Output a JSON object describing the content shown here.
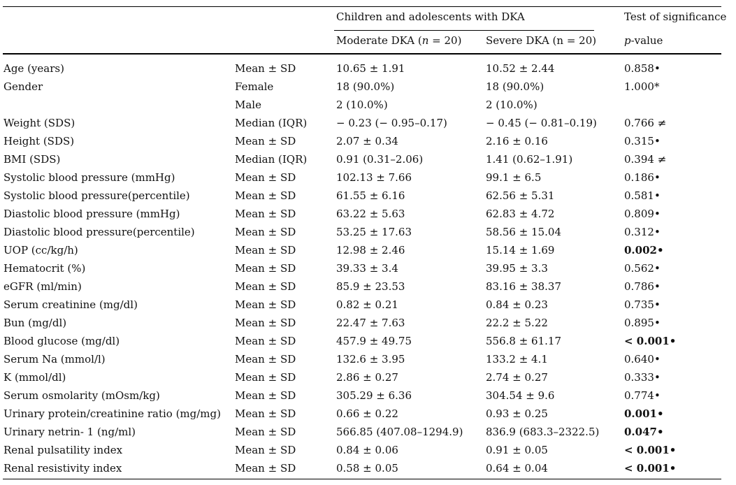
{
  "header": {
    "group_title": "Children and adolescents with DKA",
    "significance_title": "Test of significance",
    "moderate_label_prefix": "Moderate DKA (",
    "moderate_n": "n",
    "moderate_label_suffix": " = 20)",
    "severe_label": "Severe DKA (n = 20)",
    "pvalue_p": "p",
    "pvalue_suffix": "-value"
  },
  "rows": [
    {
      "variable": "Age (years)",
      "stat": "Mean ± SD",
      "moderate": "10.65 ± 1.91",
      "severe": "10.52 ± 2.44",
      "p": "0.858•",
      "bold": false
    },
    {
      "variable": "Gender",
      "stat": "Female",
      "moderate": "18 (90.0%)",
      "severe": "18 (90.0%)",
      "p": "1.000*",
      "bold": false
    },
    {
      "variable": "",
      "stat": "Male",
      "moderate": "2 (10.0%)",
      "severe": "2 (10.0%)",
      "p": "",
      "bold": false
    },
    {
      "variable": "Weight (SDS)",
      "stat": "Median (IQR)",
      "moderate": "− 0.23 (− 0.95–0.17)",
      "severe": "− 0.45 (− 0.81–0.19)",
      "p": "0.766 ≠",
      "bold": false
    },
    {
      "variable": "Height (SDS)",
      "stat": "Mean ± SD",
      "moderate": "2.07 ± 0.34",
      "severe": "2.16 ± 0.16",
      "p": "0.315•",
      "bold": false
    },
    {
      "variable": "BMI (SDS)",
      "stat": "Median (IQR)",
      "moderate": "0.91 (0.31–2.06)",
      "severe": "1.41 (0.62–1.91)",
      "p": "0.394 ≠",
      "bold": false
    },
    {
      "variable": "Systolic blood pressure (mmHg)",
      "stat": "Mean ± SD",
      "moderate": "102.13 ± 7.66",
      "severe": "99.1 ± 6.5",
      "p": "0.186•",
      "bold": false
    },
    {
      "variable": "Systolic blood pressure(percentile)",
      "stat": "Mean ± SD",
      "moderate": "61.55 ± 6.16",
      "severe": "62.56 ± 5.31",
      "p": "0.581•",
      "bold": false
    },
    {
      "variable": "Diastolic blood pressure (mmHg)",
      "stat": "Mean ± SD",
      "moderate": "63.22 ± 5.63",
      "severe": "62.83 ± 4.72",
      "p": "0.809•",
      "bold": false
    },
    {
      "variable": "Diastolic blood pressure(percentile)",
      "stat": "Mean ± SD",
      "moderate": "53.25 ± 17.63",
      "severe": "58.56 ± 15.04",
      "p": "0.312•",
      "bold": false
    },
    {
      "variable": "UOP (cc/kg/h)",
      "stat": "Mean ± SD",
      "moderate": "12.98 ± 2.46",
      "severe": "15.14 ± 1.69",
      "p": "0.002•",
      "bold": true
    },
    {
      "variable": "Hematocrit (%)",
      "stat": "Mean ± SD",
      "moderate": "39.33 ± 3.4",
      "severe": "39.95 ± 3.3",
      "p": "0.562•",
      "bold": false
    },
    {
      "variable": "eGFR (ml/min)",
      "stat": "Mean ± SD",
      "moderate": "85.9 ± 23.53",
      "severe": "83.16 ± 38.37",
      "p": "0.786•",
      "bold": false
    },
    {
      "variable": "Serum creatinine (mg/dl)",
      "stat": "Mean ± SD",
      "moderate": "0.82 ± 0.21",
      "severe": "0.84 ± 0.23",
      "p": "0.735•",
      "bold": false
    },
    {
      "variable": "Bun (mg/dl)",
      "stat": "Mean ± SD",
      "moderate": "22.47 ± 7.63",
      "severe": "22.2 ± 5.22",
      "p": "0.895•",
      "bold": false
    },
    {
      "variable": "Blood glucose (mg/dl)",
      "stat": "Mean ± SD",
      "moderate": "457.9 ± 49.75",
      "severe": "556.8 ± 61.17",
      "p": "< 0.001•",
      "bold": true
    },
    {
      "variable": "Serum Na (mmol/l)",
      "stat": "Mean ± SD",
      "moderate": "132.6 ± 3.95",
      "severe": "133.2 ± 4.1",
      "p": "0.640•",
      "bold": false
    },
    {
      "variable": "K (mmol/dl)",
      "stat": "Mean ± SD",
      "moderate": "2.86 ± 0.27",
      "severe": "2.74 ± 0.27",
      "p": "0.333•",
      "bold": false
    },
    {
      "variable": "Serum osmolarity (mOsm/kg)",
      "stat": "Mean ± SD",
      "moderate": "305.29 ± 6.36",
      "severe": "304.54 ± 9.6",
      "p": "0.774•",
      "bold": false
    },
    {
      "variable": "Urinary protein/creatinine ratio (mg/mg)",
      "stat": "Mean ± SD",
      "moderate": "0.66 ± 0.22",
      "severe": "0.93 ± 0.25",
      "p": "0.001•",
      "bold": true
    },
    {
      "variable": "Urinary netrin- 1 (ng/ml)",
      "stat": "Mean ± SD",
      "moderate": "566.85 (407.08–1294.9)",
      "severe": "836.9 (683.3–2322.5)",
      "p": "0.047•",
      "bold": true
    },
    {
      "variable": "Renal pulsatility index",
      "stat": "Mean ± SD",
      "moderate": "0.84 ± 0.06",
      "severe": "0.91 ± 0.05",
      "p": "< 0.001•",
      "bold": true
    },
    {
      "variable": "Renal resistivity index",
      "stat": "Mean ± SD",
      "moderate": "0.58 ± 0.05",
      "severe": "0.64 ± 0.04",
      "p": "< 0.001•",
      "bold": true
    }
  ]
}
